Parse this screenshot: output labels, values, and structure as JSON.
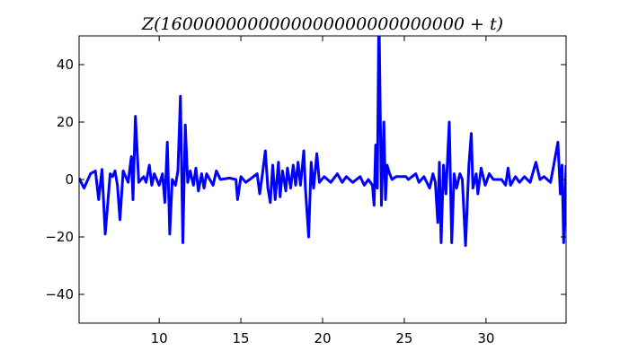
{
  "chart_data": {
    "type": "line",
    "title": "Z(1600000000000000000000000000 + t)",
    "xlabel": "",
    "ylabel": "",
    "xlim": [
      5.1,
      34.9
    ],
    "ylim": [
      -50,
      50
    ],
    "x_ticks": [
      10,
      15,
      20,
      25,
      30
    ],
    "y_ticks": [
      -40,
      -20,
      0,
      20,
      40
    ],
    "x_tick_labels": [
      "10",
      "15",
      "20",
      "25",
      "30"
    ],
    "y_tick_labels": [
      "−40",
      "−20",
      "0",
      "20",
      "40"
    ],
    "grid": false,
    "line_color": "#0000ff",
    "series": [
      {
        "x": [
          5.1,
          5.4,
          5.8,
          6.1,
          6.3,
          6.5,
          6.7,
          7.0,
          7.15,
          7.3,
          7.45,
          7.6,
          7.8,
          8.1,
          8.3,
          8.4,
          8.55,
          8.75,
          9.05,
          9.2,
          9.4,
          9.55,
          9.7,
          10.0,
          10.2,
          10.35,
          10.5,
          10.65,
          10.8,
          11.0,
          11.15,
          11.3,
          11.45,
          11.6,
          11.75,
          11.9,
          12.1,
          12.25,
          12.4,
          12.6,
          12.75,
          12.9,
          13.3,
          13.5,
          13.75,
          14.3,
          14.7,
          14.8,
          15.0,
          15.3,
          15.65,
          16.0,
          16.15,
          16.3,
          16.5,
          16.65,
          16.8,
          16.95,
          17.1,
          17.3,
          17.4,
          17.55,
          17.75,
          17.85,
          18.05,
          18.2,
          18.35,
          18.5,
          18.65,
          18.85,
          18.95,
          19.15,
          19.3,
          19.45,
          19.65,
          19.8,
          20.1,
          20.5,
          20.9,
          21.2,
          21.45,
          21.85,
          22.3,
          22.55,
          22.8,
          23.05,
          23.15,
          23.25,
          23.35,
          23.45,
          23.6,
          23.75,
          23.85,
          23.95,
          24.1,
          24.25,
          24.5,
          25.1,
          25.25,
          25.7,
          25.9,
          26.2,
          26.55,
          26.75,
          26.9,
          27.05,
          27.15,
          27.25,
          27.4,
          27.55,
          27.75,
          27.9,
          28.05,
          28.2,
          28.4,
          28.55,
          28.75,
          28.95,
          29.1,
          29.2,
          29.4,
          29.5,
          29.7,
          29.95,
          30.2,
          30.45,
          30.95,
          31.2,
          31.35,
          31.5,
          31.8,
          32.05,
          32.35,
          32.7,
          33.05,
          33.3,
          33.55,
          33.95,
          34.4,
          34.55,
          34.65,
          34.75,
          34.9
        ],
        "y": [
          0.5,
          -3,
          2,
          3,
          -7,
          3.5,
          -19,
          2,
          1,
          3,
          -2,
          -14,
          3,
          -1,
          8,
          -7,
          22,
          -1,
          1,
          -1,
          5,
          -2,
          2,
          -2,
          2,
          -8,
          13,
          -19,
          0,
          -2,
          3,
          29,
          -22,
          19,
          -1,
          3,
          -2,
          4,
          -4,
          2,
          -3,
          2,
          -2,
          3,
          0,
          0.5,
          0,
          -7,
          1,
          -1,
          0.5,
          2,
          -5,
          1,
          10,
          -3,
          -8,
          5,
          -7,
          6,
          -6,
          3,
          -4,
          4,
          -3,
          5,
          -2,
          6,
          -2,
          10,
          -3,
          -20,
          6,
          -3,
          9,
          -1,
          1,
          -1,
          2,
          -1,
          1,
          -1,
          1,
          -2,
          0,
          -2,
          -9,
          12,
          -3,
          60,
          -9,
          20,
          -7,
          5,
          2,
          0,
          1,
          1,
          0,
          2,
          -1,
          1,
          -3,
          2,
          -1,
          -15,
          6,
          -22,
          5,
          -5,
          20,
          -22,
          2,
          -3,
          2,
          0,
          -23,
          5,
          16,
          -3,
          2,
          -5,
          4,
          -2,
          2,
          0,
          0,
          -2,
          4,
          -2,
          1,
          -1,
          1,
          -1,
          6,
          0,
          1,
          -1,
          13,
          -5,
          5,
          -22,
          5
        ]
      }
    ]
  }
}
